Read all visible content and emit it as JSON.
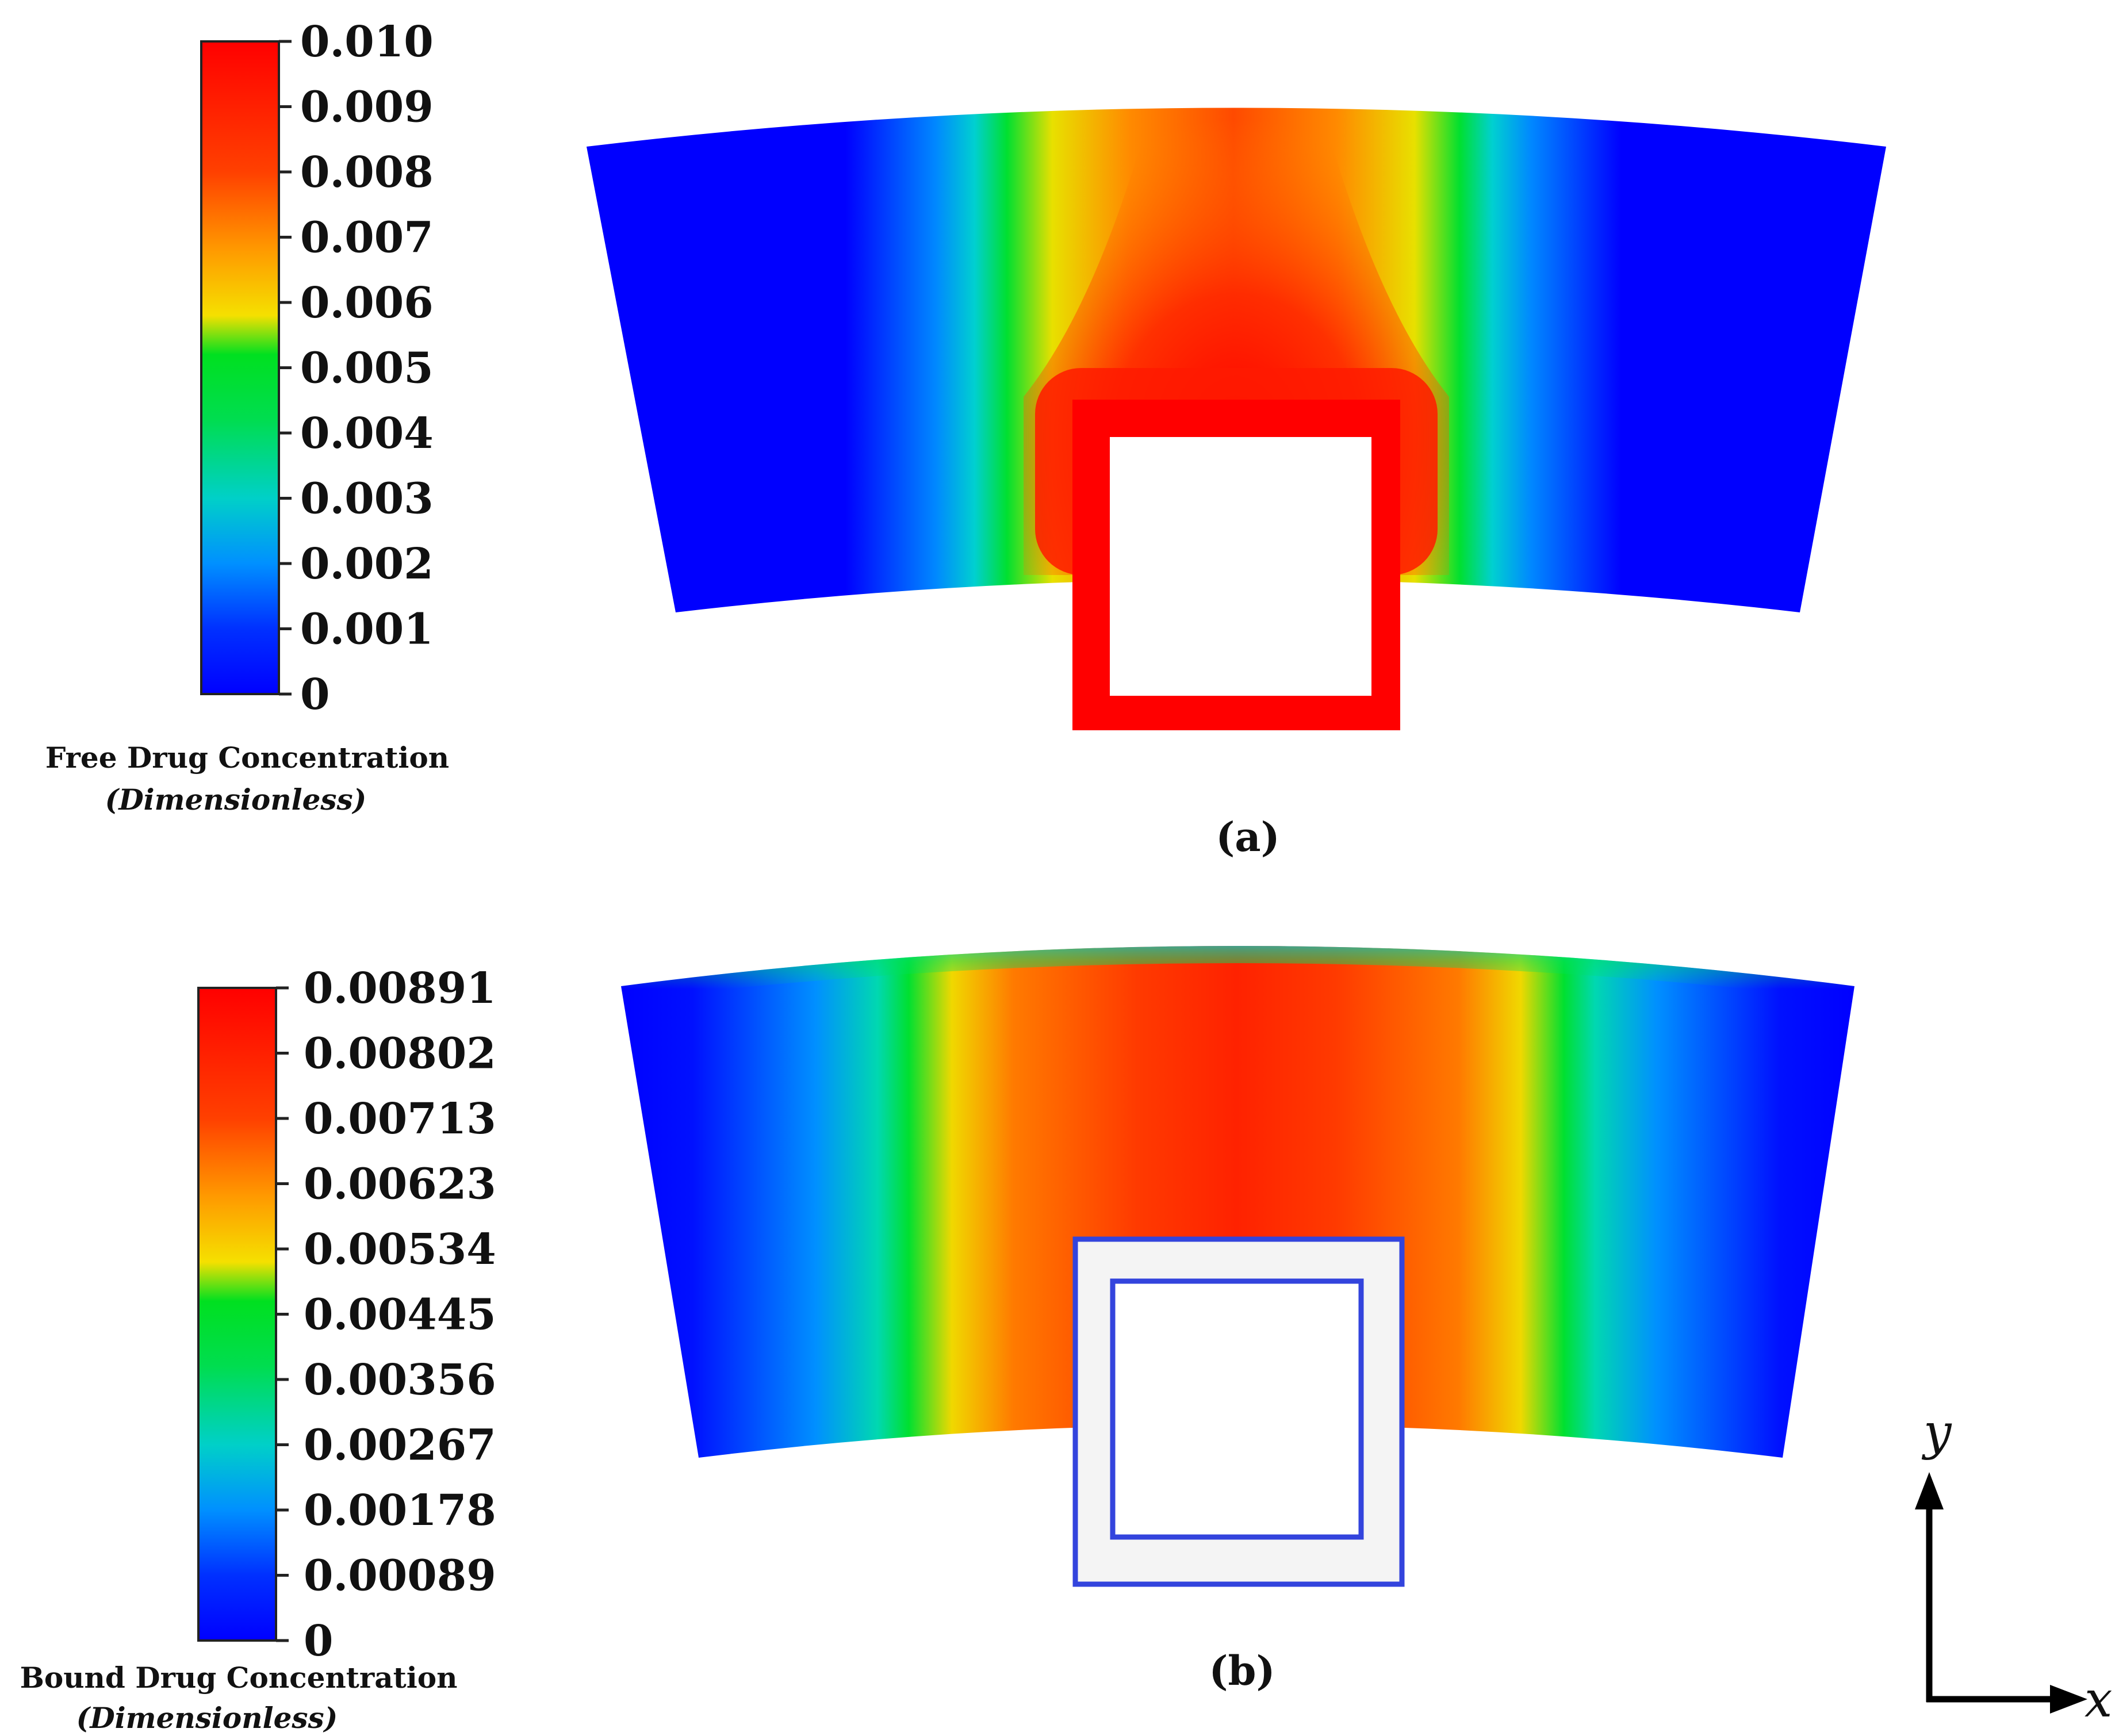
{
  "figure": {
    "panel_a": {
      "label": "(a)",
      "colorbar": {
        "title": "Free Drug Concentration",
        "subtitle": "(Dimensionless)",
        "ticks": [
          "0.010",
          "0.009",
          "0.008",
          "0.007",
          "0.006",
          "0.005",
          "0.004",
          "0.003",
          "0.002",
          "0.001",
          "0"
        ]
      }
    },
    "panel_b": {
      "label": "(b)",
      "colorbar": {
        "title": "Bound Drug Concentration",
        "subtitle": "(Dimensionless)",
        "ticks": [
          "0.00891",
          "0.00802",
          "0.00713",
          "0.00623",
          "0.00534",
          "0.00445",
          "0.00356",
          "0.00267",
          "0.00178",
          "0.00089",
          "0"
        ]
      }
    },
    "axes": {
      "x_label": "x",
      "y_label": "y"
    },
    "colors": {
      "high": "#ff0000",
      "orange": "#ff8000",
      "yellow": "#ffd800",
      "green": "#00dd20",
      "cyan": "#00c8ff",
      "blue": "#0000ff",
      "strut_outline_b": "#3344dd"
    }
  }
}
